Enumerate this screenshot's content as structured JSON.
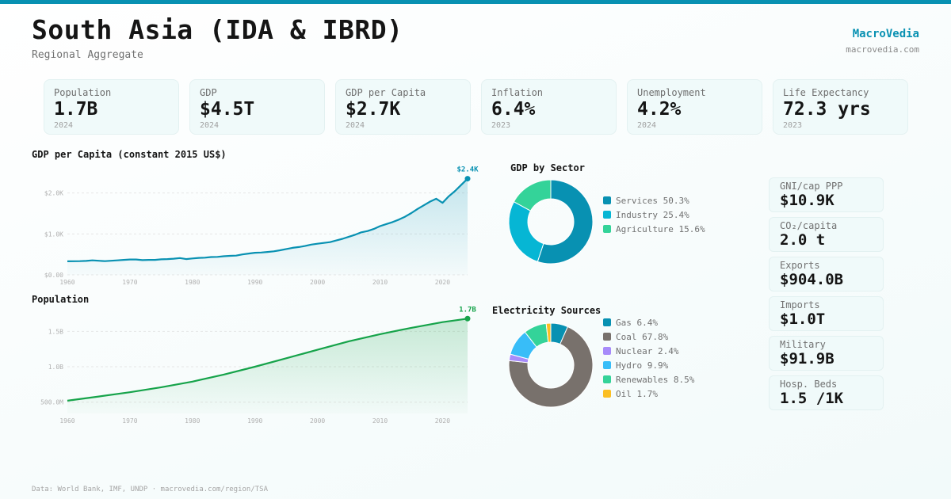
{
  "header": {
    "title": "South Asia (IDA & IBRD)",
    "subtitle": "Regional Aggregate",
    "brand": "MacroVedia",
    "brand_url": "macrovedia.com",
    "accent": "#0891b2"
  },
  "stats": [
    {
      "label": "Population",
      "value": "1.7B",
      "year": "2024"
    },
    {
      "label": "GDP",
      "value": "$4.5T",
      "year": "2024"
    },
    {
      "label": "GDP per Capita",
      "value": "$2.7K",
      "year": "2024"
    },
    {
      "label": "Inflation",
      "value": "6.4%",
      "year": "2023"
    },
    {
      "label": "Unemployment",
      "value": "4.2%",
      "year": "2024"
    },
    {
      "label": "Life Expectancy",
      "value": "72.3 yrs",
      "year": "2023"
    }
  ],
  "side_stats": [
    {
      "label": "GNI/cap PPP",
      "value": "$10.9K"
    },
    {
      "label": "CO₂/capita",
      "value": "2.0 t"
    },
    {
      "label": "Exports",
      "value": "$904.0B"
    },
    {
      "label": "Imports",
      "value": "$1.0T"
    },
    {
      "label": "Military",
      "value": "$91.9B"
    },
    {
      "label": "Hosp. Beds",
      "value": "1.5 /1K"
    }
  ],
  "footer": "Data: World Bank, IMF, UNDP · macrovedia.com/region/TSA",
  "chart_data": [
    {
      "id": "gdp_pc",
      "type": "area",
      "title": "GDP per Capita (constant 2015 US$)",
      "color": "#0891b2",
      "xlim": [
        1960,
        2024
      ],
      "ylim": [
        0,
        2400
      ],
      "yticks": [
        0,
        1000,
        2000
      ],
      "yticklabels": [
        "$0.00",
        "$1.0K",
        "$2.0K"
      ],
      "xticks": [
        1960,
        1970,
        1980,
        1990,
        2000,
        2010,
        2020
      ],
      "end_label": "$2.4K",
      "grid": true,
      "x": [
        1960,
        1961,
        1962,
        1963,
        1964,
        1965,
        1966,
        1967,
        1968,
        1969,
        1970,
        1971,
        1972,
        1973,
        1974,
        1975,
        1976,
        1977,
        1978,
        1979,
        1980,
        1981,
        1982,
        1983,
        1984,
        1985,
        1986,
        1987,
        1988,
        1989,
        1990,
        1991,
        1992,
        1993,
        1994,
        1995,
        1996,
        1997,
        1998,
        1999,
        2000,
        2001,
        2002,
        2003,
        2004,
        2005,
        2006,
        2007,
        2008,
        2009,
        2010,
        2011,
        2012,
        2013,
        2014,
        2015,
        2016,
        2017,
        2018,
        2019,
        2020,
        2021,
        2022,
        2023,
        2024
      ],
      "values": [
        330,
        332,
        335,
        340,
        355,
        345,
        335,
        345,
        355,
        365,
        375,
        375,
        360,
        365,
        365,
        380,
        385,
        395,
        410,
        385,
        400,
        415,
        420,
        435,
        440,
        455,
        465,
        470,
        500,
        520,
        540,
        545,
        560,
        575,
        600,
        630,
        660,
        680,
        705,
        740,
        760,
        780,
        800,
        840,
        880,
        930,
        980,
        1040,
        1070,
        1120,
        1190,
        1240,
        1290,
        1350,
        1420,
        1510,
        1610,
        1700,
        1790,
        1860,
        1760,
        1920,
        2050,
        2200,
        2350
      ]
    },
    {
      "id": "population",
      "type": "area",
      "title": "Population",
      "color": "#16a34a",
      "xlim": [
        1960,
        2024
      ],
      "ylim": [
        340000000,
        1750000000
      ],
      "yticks": [
        500000000,
        1000000000,
        1500000000
      ],
      "yticklabels": [
        "500.0M",
        "1.0B",
        "1.5B"
      ],
      "xticks": [
        1960,
        1970,
        1980,
        1990,
        2000,
        2010,
        2020
      ],
      "end_label": "1.7B",
      "grid": true,
      "x": [
        1960,
        1965,
        1970,
        1975,
        1980,
        1985,
        1990,
        1995,
        2000,
        2005,
        2010,
        2015,
        2020,
        2024
      ],
      "values": [
        520000000,
        580000000,
        640000000,
        710000000,
        790000000,
        890000000,
        1000000000,
        1120000000,
        1240000000,
        1360000000,
        1460000000,
        1550000000,
        1630000000,
        1680000000
      ]
    },
    {
      "id": "gdp_sector",
      "type": "pie",
      "title": "GDP by Sector",
      "labels": [
        "Services",
        "Industry",
        "Agriculture"
      ],
      "values": [
        50.3,
        25.4,
        15.6
      ],
      "colors": [
        "#0891b2",
        "#06b6d4",
        "#34d399"
      ],
      "legend_text": [
        "Services 50.3%",
        "Industry 25.4%",
        "Agriculture 15.6%"
      ],
      "legend": "right"
    },
    {
      "id": "electricity",
      "type": "pie",
      "title": "Electricity Sources",
      "labels": [
        "Gas",
        "Coal",
        "Nuclear",
        "Hydro",
        "Renewables",
        "Oil"
      ],
      "values": [
        6.4,
        67.8,
        2.4,
        9.9,
        8.5,
        1.7
      ],
      "colors": [
        "#0891b2",
        "#78716c",
        "#a78bfa",
        "#38bdf8",
        "#34d399",
        "#fbbf24"
      ],
      "legend_text": [
        "Gas 6.4%",
        "Coal 67.8%",
        "Nuclear 2.4%",
        "Hydro 9.9%",
        "Renewables 8.5%",
        "Oil 1.7%"
      ],
      "legend": "right"
    }
  ]
}
